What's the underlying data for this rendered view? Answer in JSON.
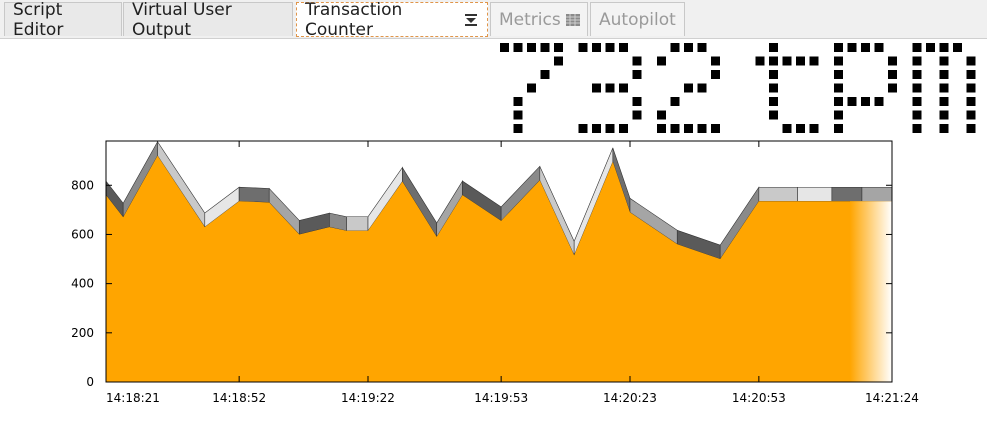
{
  "tabs": [
    {
      "label": "Script Editor",
      "state": "normal",
      "icon": null
    },
    {
      "label": "Virtual User Output",
      "state": "normal",
      "icon": null
    },
    {
      "label": "Transaction Counter",
      "state": "active",
      "icon": "collapse-icon"
    },
    {
      "label": "Metrics",
      "state": "disabled",
      "icon": "grid-icon"
    },
    {
      "label": "Autopilot",
      "state": "disabled",
      "icon": null
    }
  ],
  "counter": {
    "value": "732",
    "unit": "tpm"
  },
  "colors": {
    "area": "#ffa500",
    "accent": "#e0954a"
  },
  "chart_data": {
    "type": "area",
    "title": "",
    "xlabel": "",
    "ylabel": "",
    "ylim": [
      0,
      980
    ],
    "y_ticks": [
      0,
      200,
      400,
      600,
      800
    ],
    "x_ticks": [
      "14:18:21",
      "14:18:52",
      "14:19:22",
      "14:19:53",
      "14:20:23",
      "14:20:53",
      "14:21:24"
    ],
    "grid": false,
    "legend": "none",
    "x": [
      "14:18:21",
      "14:18:25",
      "14:18:33",
      "14:18:44",
      "14:18:52",
      "14:18:59",
      "14:19:06",
      "14:19:13",
      "14:19:17",
      "14:19:22",
      "14:19:30",
      "14:19:38",
      "14:19:44",
      "14:19:53",
      "14:20:02",
      "14:20:10",
      "14:20:19",
      "14:20:23",
      "14:20:34",
      "14:20:44",
      "14:20:53",
      "14:21:02",
      "14:21:10",
      "14:21:17",
      "14:21:24"
    ],
    "series": [
      {
        "values": [
          760,
          670,
          920,
          630,
          735,
          730,
          600,
          630,
          615,
          615,
          815,
          590,
          760,
          655,
          820,
          515,
          895,
          690,
          560,
          500,
          735,
          735,
          735,
          735,
          735
        ]
      }
    ]
  }
}
